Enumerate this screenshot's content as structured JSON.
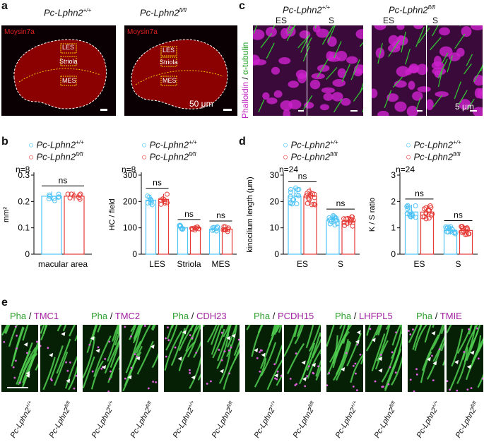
{
  "panel_letters": {
    "a": "a",
    "b": "b",
    "c": "c",
    "d": "d",
    "e": "e"
  },
  "genotypes": {
    "wt": "Pc-Lphn2",
    "wt_sup": "+/+",
    "ko": "Pc-Lphn2",
    "ko_sup": "fl/fl"
  },
  "colors": {
    "wt": "#4fc3f7",
    "ko": "#e53935",
    "tissue_red": "#8b0000",
    "phalloidin": "#d020d0",
    "tubulin": "#30d030"
  },
  "panel_a": {
    "stain": "Moysin7a",
    "regions": {
      "les": "LES",
      "striola": "Striola",
      "mes": "MES"
    },
    "scale": "50 μm"
  },
  "panel_c": {
    "ylabel_pha": "Phalloidin",
    "ylabel_sep": " / ",
    "ylabel_tub": "α-tubulin",
    "es": "ES",
    "s": "S",
    "scale": "5 μm"
  },
  "panel_e": {
    "stain": "Pha",
    "sep": " / ",
    "proteins": [
      "TMC1",
      "TMC2",
      "CDH23",
      "PCDH15",
      "LHFPL5",
      "TMIE"
    ]
  },
  "chart_data": [
    {
      "id": "b1",
      "type": "bar",
      "n_label": "n=8",
      "ylabel": "mm²",
      "categories": [
        "macular area"
      ],
      "yticks": [
        "0.1",
        "0.2",
        "0.3"
      ],
      "ylim": [
        0,
        0.3
      ],
      "series": [
        {
          "name": "Pc-Lphn2+/+",
          "values": [
            0.22
          ]
        },
        {
          "name": "Pc-Lphn2fl/fl",
          "values": [
            0.22
          ]
        }
      ],
      "significance": [
        "ns"
      ]
    },
    {
      "id": "b2",
      "type": "bar",
      "n_label": "n=8",
      "ylabel": "HC / field",
      "categories": [
        "LES",
        "Striola",
        "MES"
      ],
      "yticks": [
        "100",
        "200",
        "300"
      ],
      "ylim": [
        0,
        300
      ],
      "series": [
        {
          "name": "Pc-Lphn2+/+",
          "values": [
            205,
            100,
            95
          ]
        },
        {
          "name": "Pc-Lphn2fl/fl",
          "values": [
            208,
            100,
            95
          ]
        }
      ],
      "significance": [
        "ns",
        "ns",
        "ns"
      ]
    },
    {
      "id": "d1",
      "type": "bar",
      "n_label": "n=24",
      "ylabel": "kinocilium length (μm)",
      "categories": [
        "ES",
        "S"
      ],
      "yticks": [
        "10",
        "20",
        "30"
      ],
      "ylim": [
        0,
        30
      ],
      "series": [
        {
          "name": "Pc-Lphn2+/+",
          "values": [
            22,
            13
          ]
        },
        {
          "name": "Pc-Lphn2fl/fl",
          "values": [
            22,
            12.5
          ]
        }
      ],
      "significance": [
        "ns",
        "ns"
      ]
    },
    {
      "id": "d2",
      "type": "bar",
      "n_label": "n=24",
      "ylabel": "K / S ratio",
      "categories": [
        "ES",
        "S"
      ],
      "yticks": [
        "1",
        "2",
        "3"
      ],
      "ylim": [
        0,
        3
      ],
      "series": [
        {
          "name": "Pc-Lphn2+/+",
          "values": [
            1.6,
            0.9
          ]
        },
        {
          "name": "Pc-Lphn2fl/fl",
          "values": [
            1.6,
            0.9
          ]
        }
      ],
      "significance": [
        "ns",
        "ns"
      ]
    }
  ]
}
